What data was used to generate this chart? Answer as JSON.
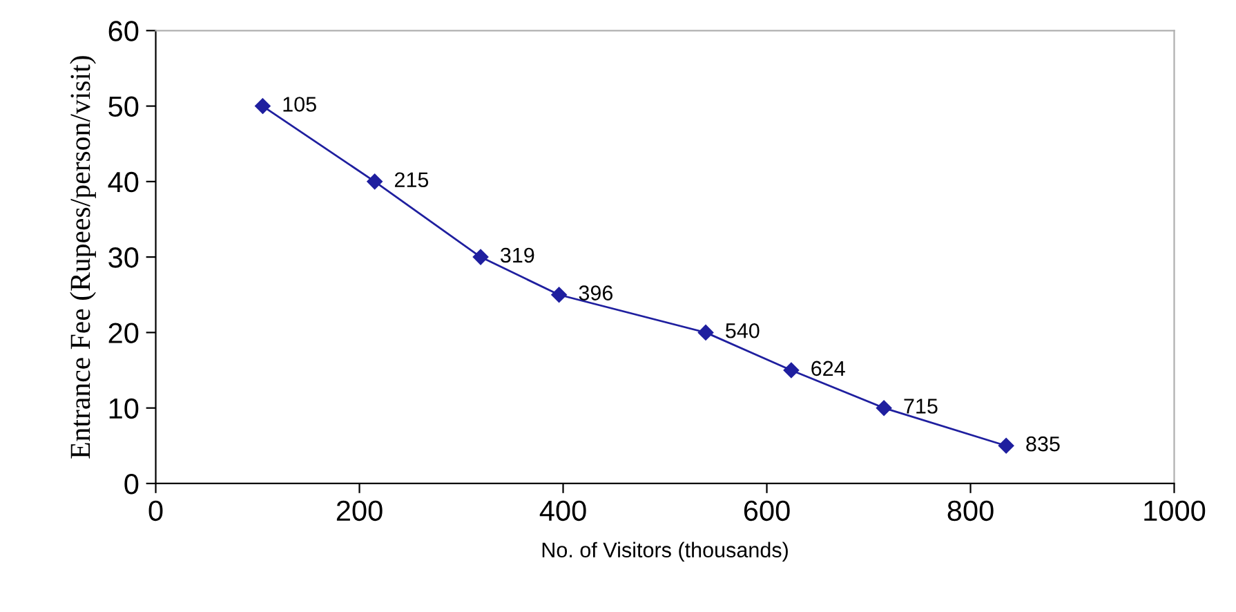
{
  "chart_data": {
    "type": "line",
    "xlabel": "No. of Visitors (thousands)",
    "ylabel": "Entrance Fee (Rupees/person/visit)",
    "x": [
      105,
      215,
      319,
      396,
      540,
      624,
      715,
      835
    ],
    "series": [
      {
        "color": "#1f1f9f",
        "values": [
          50,
          40,
          30,
          25,
          20,
          15,
          10,
          5
        ]
      }
    ],
    "annotations": [
      {
        "text": "105",
        "x": 105,
        "y": 50
      },
      {
        "text": "215",
        "x": 215,
        "y": 40
      },
      {
        "text": "319",
        "x": 319,
        "y": 30
      },
      {
        "text": "396",
        "x": 396,
        "y": 25
      },
      {
        "text": "540",
        "x": 540,
        "y": 20
      },
      {
        "text": "624",
        "x": 624,
        "y": 15
      },
      {
        "text": "715",
        "x": 715,
        "y": 10
      },
      {
        "text": "835",
        "x": 835,
        "y": 5
      }
    ],
    "xlim": [
      0,
      1000
    ],
    "xticks": [
      0,
      200,
      400,
      600,
      800,
      1000
    ],
    "ylim": [
      0,
      60
    ],
    "yticks": [
      0,
      10,
      20,
      30,
      40,
      50,
      60
    ],
    "marker": "diamond",
    "line_style": "solid",
    "grid": false,
    "legend": false
  }
}
